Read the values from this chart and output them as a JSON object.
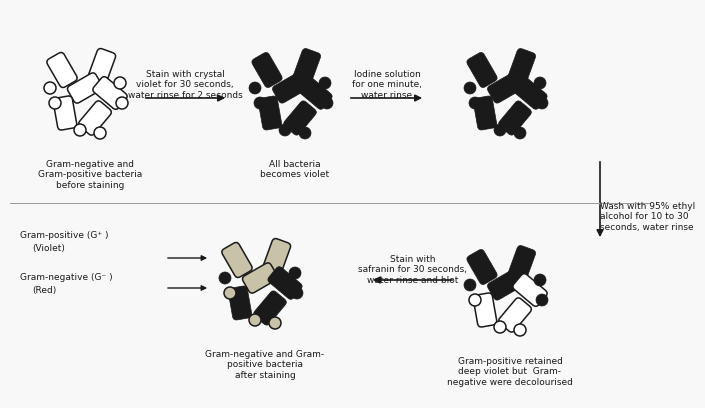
{
  "background_color": "#f8f8f8",
  "outline_color": "#1a1a1a",
  "black_fill": "#1a1a1a",
  "gray_fill": "#c8c2a8",
  "white_fill": "#ffffff",
  "text_color": "#1a1a1a",
  "steps": {
    "step1_label": "Gram-negative and\nGram-positive bacteria\nbefore staining",
    "step2_label": "All bacteria\nbecomes violet",
    "step3_label": "Gram-positive retained\ndeep violet but  Gram-\nnegative were decolourised",
    "step4_label": "Gram-negative and Gram-\npositive bacteria\nafter staining",
    "arrow1_text": "Stain with crystal\nviolet for 30 seconds,\nwater rinse for 2 seconds",
    "arrow2_text": "Iodine solution\nfor one minute,\nwater rinse",
    "arrow3_text": "Wash with 95% ethyl\nalcohol for 10 to 30\nseconds, water rinse",
    "arrow4_text": "Stain with\nsafranin for 30 seconds,\nwater rinse and blot",
    "legend1": "Gram-positive (G⁺ )",
    "legend1b": "(Violet)",
    "legend2": "Gram-negative (G⁻ )",
    "legend2b": "(Red)"
  }
}
